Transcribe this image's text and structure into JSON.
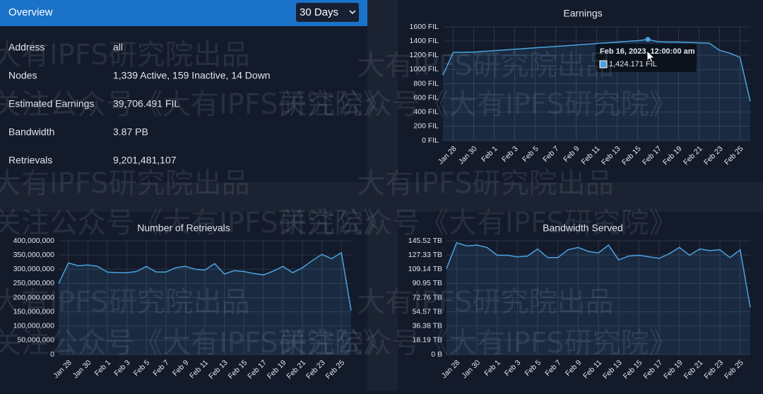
{
  "overview": {
    "title": "Overview",
    "range": "30 Days",
    "rows": [
      [
        "Address",
        "all"
      ],
      [
        "Nodes",
        "1,339 Active, 159 Inactive, 14 Down"
      ],
      [
        "Estimated Earnings",
        "39,706.491 FIL"
      ],
      [
        "Bandwidth",
        "3.87 PB"
      ],
      [
        "Retrievals",
        "9,201,481,107"
      ]
    ]
  },
  "watermarks": [
    "大有IPFS研究院出品",
    "关注公众号《大有IPFS研究院》"
  ],
  "chart_data": [
    {
      "type": "line",
      "title": "Earnings",
      "color": "#4aa3df",
      "grid": true,
      "categories": [
        null,
        "Jan 28",
        null,
        "Jan 30",
        null,
        "Feb 1",
        null,
        "Feb 3",
        null,
        "Feb 5",
        null,
        "Feb 7",
        null,
        "Feb 9",
        null,
        "Feb 11",
        null,
        "Feb 13",
        null,
        "Feb 15",
        null,
        "Feb 17",
        null,
        "Feb 19",
        null,
        "Feb 21",
        null,
        "Feb 23",
        null,
        "Feb 25",
        null
      ],
      "values": [
        920,
        1240,
        1242,
        1245,
        1255,
        1265,
        1275,
        1285,
        1295,
        1305,
        1315,
        1325,
        1335,
        1345,
        1355,
        1365,
        1375,
        1385,
        1395,
        1405,
        1424.171,
        1390,
        1385,
        1385,
        1380,
        1375,
        1370,
        1270,
        1230,
        1170,
        550
      ],
      "ylim": [
        0,
        1600
      ],
      "yticks": [
        {
          "value": 0,
          "label": "0 FIL"
        },
        {
          "value": 200,
          "label": "200 FIL"
        },
        {
          "value": 400,
          "label": "400 FIL"
        },
        {
          "value": 600,
          "label": "600 FIL"
        },
        {
          "value": 800,
          "label": "800 FIL"
        },
        {
          "value": 1000,
          "label": "1000 FIL"
        },
        {
          "value": 1200,
          "label": "1200 FIL"
        },
        {
          "value": 1400,
          "label": "1400 FIL"
        },
        {
          "value": 1600,
          "label": "1600 FIL"
        }
      ],
      "tooltip": {
        "title": "Feb 16, 2023, 12:00:00 am",
        "label": "1,424.171 FIL"
      }
    },
    {
      "type": "line",
      "title": "Number of Retrievals",
      "color": "#4aa3df",
      "grid": true,
      "categories": [
        null,
        "Jan 28",
        null,
        "Jan 30",
        null,
        "Feb 1",
        null,
        "Feb 3",
        null,
        "Feb 5",
        null,
        "Feb 7",
        null,
        "Feb 9",
        null,
        "Feb 11",
        null,
        "Feb 13",
        null,
        "Feb 15",
        null,
        "Feb 17",
        null,
        "Feb 19",
        null,
        "Feb 21",
        null,
        "Feb 23",
        null,
        "Feb 25",
        null
      ],
      "values": [
        250000000,
        322000000,
        312000000,
        315000000,
        310000000,
        290000000,
        288000000,
        288000000,
        292000000,
        310000000,
        290000000,
        290000000,
        305000000,
        310000000,
        300000000,
        297000000,
        320000000,
        283000000,
        295000000,
        292000000,
        285000000,
        280000000,
        293000000,
        310000000,
        288000000,
        305000000,
        330000000,
        352000000,
        337000000,
        358000000,
        155000000
      ],
      "ylim": [
        0,
        400000000
      ],
      "yticks": [
        0,
        {
          "value": 50000000,
          "label": "50,000,000"
        },
        {
          "value": 100000000,
          "label": "100,000,000"
        },
        {
          "value": 150000000,
          "label": "150,000,000"
        },
        {
          "value": 200000000,
          "label": "200,000,000"
        },
        {
          "value": 250000000,
          "label": "250,000,000"
        },
        {
          "value": 300000000,
          "label": "300,000,000"
        },
        {
          "value": 350000000,
          "label": "350,000,000"
        },
        {
          "value": 400000000,
          "label": "400,000,000"
        }
      ]
    },
    {
      "type": "line",
      "title": "Bandwidth Served",
      "color": "#4aa3df",
      "grid": true,
      "categories": [
        null,
        "Jan 28",
        null,
        "Jan 30",
        null,
        "Feb 1",
        null,
        "Feb 3",
        null,
        "Feb 5",
        null,
        "Feb 7",
        null,
        "Feb 9",
        null,
        "Feb 11",
        null,
        "Feb 13",
        null,
        "Feb 15",
        null,
        "Feb 17",
        null,
        "Feb 19",
        null,
        "Feb 21",
        null,
        "Feb 23",
        null,
        "Feb 25",
        null
      ],
      "values": [
        110,
        143,
        139,
        140,
        137,
        127,
        127,
        125,
        126,
        135,
        124,
        124,
        134,
        137,
        132,
        130,
        140,
        121,
        126,
        127,
        125,
        123,
        129,
        137,
        127,
        135,
        133,
        134,
        124,
        134,
        60
      ],
      "ylim": [
        0,
        145.52
      ],
      "yticks": [
        {
          "value": 0,
          "label": "0 B"
        },
        {
          "value": 18.19,
          "label": "18.19 TB"
        },
        {
          "value": 36.38,
          "label": "36.38 TB"
        },
        {
          "value": 54.57,
          "label": "54.57 TB"
        },
        {
          "value": 72.76,
          "label": "72.76 TB"
        },
        {
          "value": 90.95,
          "label": "90.95 TB"
        },
        {
          "value": 109.14,
          "label": "109.14 TB"
        },
        {
          "value": 127.33,
          "label": "127.33 TB"
        },
        {
          "value": 145.52,
          "label": "145.52 TB"
        }
      ]
    }
  ]
}
